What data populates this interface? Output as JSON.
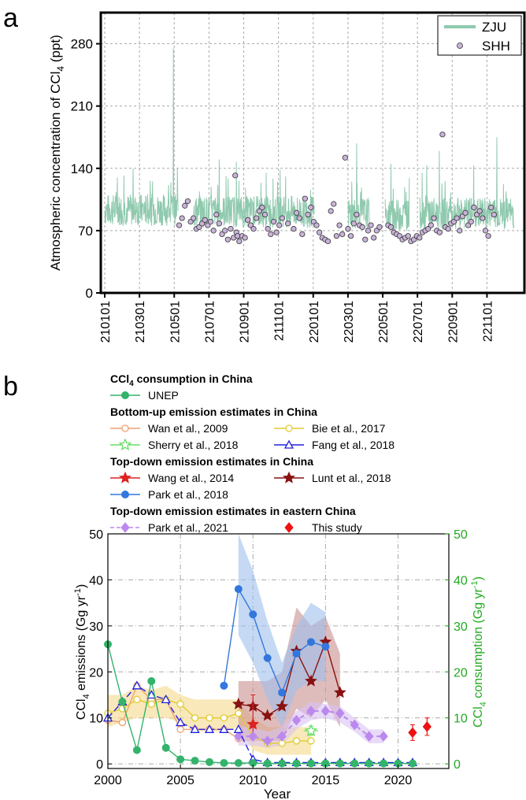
{
  "panel_labels": {
    "a": "a",
    "b": "b"
  },
  "chart_data": [
    {
      "type": "line",
      "panel": "a",
      "ylabel_main": "Atmospheric concentration of CCl",
      "ylabel_sub": "4",
      "ylabel_tail": " (ppt)",
      "xlabel": "",
      "ylim": [
        0,
        315
      ],
      "yticks": [
        0,
        70,
        140,
        210,
        280
      ],
      "xlim": [
        210101,
        221231
      ],
      "xticks": [
        "210101",
        "210301",
        "210501",
        "210701",
        "210901",
        "211101",
        "220101",
        "220301",
        "220501",
        "220701",
        "220901",
        "221101"
      ],
      "grid": true,
      "legend": {
        "position": "top-right",
        "entries": [
          {
            "name": "ZJU",
            "color": "#8fc9ae",
            "kind": "line"
          },
          {
            "name": "SHH",
            "color": "#c9b3d9",
            "kind": "marker"
          }
        ]
      },
      "series": [
        {
          "name": "ZJU",
          "color": "#8fc9ae",
          "segments": [
            {
              "start_day": 0,
              "end_day": 128,
              "base": 88,
              "spike_day": 120,
              "spike": 275
            },
            {
              "start_day": 153,
              "end_day": 366,
              "base": 86,
              "spike_day": 200,
              "spike": 150
            },
            {
              "start_day": 425,
              "end_day": 463,
              "base": 84,
              "spike_day": 440,
              "spike": 168
            },
            {
              "start_day": 490,
              "end_day": 532,
              "base": 82,
              "spike_day": 500,
              "spike": 145
            },
            {
              "start_day": 550,
              "end_day": 715,
              "base": 84,
              "spike_day": 685,
              "spike": 175
            }
          ]
        },
        {
          "name": "SHH",
          "color": "#c9b3d9",
          "x_days": [
            130,
            135,
            140,
            145,
            150,
            155,
            160,
            165,
            170,
            175,
            180,
            185,
            190,
            195,
            200,
            205,
            210,
            215,
            220,
            225,
            228,
            230,
            232,
            235,
            240,
            245,
            250,
            255,
            260,
            265,
            270,
            275,
            280,
            285,
            290,
            295,
            300,
            305,
            310,
            320,
            330,
            335,
            340,
            345,
            350,
            355,
            360,
            365,
            370,
            375,
            380,
            385,
            390,
            395,
            400,
            405,
            410,
            415,
            420,
            425,
            430,
            435,
            440,
            445,
            450,
            455,
            460,
            465,
            470,
            475,
            480,
            495,
            500,
            505,
            510,
            515,
            520,
            525,
            530,
            535,
            540,
            545,
            550,
            555,
            560,
            565,
            570,
            575,
            580,
            585,
            590,
            595,
            600,
            605,
            610,
            615,
            620,
            625,
            630,
            635,
            640,
            645,
            650,
            655,
            660,
            665,
            670,
            675,
            680
          ],
          "y": [
            76,
            84,
            98,
            103,
            80,
            84,
            72,
            74,
            78,
            82,
            76,
            80,
            70,
            88,
            78,
            66,
            70,
            60,
            72,
            62,
            132,
            68,
            64,
            58,
            64,
            62,
            82,
            76,
            72,
            84,
            92,
            96,
            88,
            72,
            66,
            80,
            68,
            76,
            84,
            78,
            72,
            90,
            84,
            66,
            106,
            88,
            96,
            80,
            76,
            68,
            62,
            60,
            58,
            92,
            100,
            64,
            76,
            66,
            152,
            72,
            64,
            78,
            88,
            76,
            74,
            60,
            70,
            76,
            62,
            70,
            74,
            76,
            74,
            68,
            66,
            64,
            60,
            62,
            64,
            58,
            60,
            64,
            62,
            68,
            70,
            72,
            76,
            84,
            70,
            68,
            178,
            74,
            72,
            78,
            80,
            84,
            70,
            86,
            90,
            76,
            80,
            96,
            88,
            92,
            84,
            70,
            64,
            96,
            88
          ]
        }
      ]
    },
    {
      "type": "line",
      "panel": "b",
      "xlabel": "Year",
      "ylabel_left_main": "CCl",
      "ylabel_left_sub": "4",
      "ylabel_left_tail": " emissions (Gg yr",
      "ylabel_left_sup": "-1",
      "ylabel_right_main": "CCl",
      "ylabel_right_sub": "4",
      "ylabel_right_tail": " consumption (Gg yr",
      "ylabel_right_sup": "-1",
      "xlim": [
        2000,
        2023.5
      ],
      "xticks": [
        2000,
        2005,
        2010,
        2015,
        2020
      ],
      "ylim": [
        -1,
        50
      ],
      "yticks": [
        0,
        10,
        20,
        30,
        40,
        50
      ],
      "right_axis_color": "#22aa22",
      "grid": true,
      "legend_groups": [
        {
          "title": "CCl",
          "title_sub": "4",
          "title_tail": " consumption in China",
          "entries": [
            {
              "name": "UNEP",
              "color": "#33b36b",
              "marker": "circle-filled"
            }
          ]
        },
        {
          "title": "Bottom-up emission estimates in China",
          "entries": [
            {
              "name": "Wan et al., 2009",
              "color": "#f0a070",
              "marker": "circle-open"
            },
            {
              "name": "Bie et al., 2017",
              "color": "#e0cc30",
              "marker": "circle-open"
            },
            {
              "name": "Sherry et al., 2018",
              "color": "#66dd66",
              "marker": "star-open"
            },
            {
              "name": "Fang et al., 2018",
              "color": "#2222dd",
              "marker": "triangle-open"
            }
          ]
        },
        {
          "title": "Top-down emission estimates in China",
          "entries": [
            {
              "name": "Wang et al., 2014",
              "color": "#dd2222",
              "marker": "star-filled"
            },
            {
              "name": "Lunt et al., 2018",
              "color": "#881111",
              "marker": "star-filled"
            },
            {
              "name": "Park et al., 2018",
              "color": "#3377dd",
              "marker": "circle-filled"
            }
          ]
        },
        {
          "title": "Top-down emission estimates in eastern China",
          "entries": [
            {
              "name": "Park et al., 2021",
              "color": "#bb88ee",
              "marker": "diamond-filled"
            },
            {
              "name": "This study",
              "color": "#ee1111",
              "marker": "diamond-filled"
            }
          ]
        }
      ],
      "series": [
        {
          "name": "UNEP",
          "color": "#33b36b",
          "marker": "circle-filled",
          "axis": "right",
          "x": [
            2000,
            2001,
            2002,
            2003,
            2004,
            2005,
            2006,
            2007,
            2008,
            2009,
            2010,
            2011,
            2012,
            2013,
            2014,
            2015,
            2016,
            2017,
            2018,
            2019,
            2020,
            2021
          ],
          "y": [
            26,
            13.5,
            3,
            18,
            3.5,
            1,
            0.7,
            0.4,
            0.2,
            0.2,
            0.2,
            0.1,
            0.1,
            0.1,
            0.1,
            0.1,
            0.1,
            0.1,
            0.1,
            0.1,
            0.1,
            0.1
          ]
        },
        {
          "name": "Wan et al., 2009",
          "color": "#f0a070",
          "marker": "circle-open",
          "x": [
            2000,
            2001,
            2002,
            2003,
            2004,
            2005,
            2006,
            2007,
            2008,
            2009
          ],
          "y": [
            9.5,
            9,
            17,
            14,
            14,
            7.5,
            7.5,
            7.5,
            7.5,
            5.5
          ]
        },
        {
          "name": "Bie et al., 2017",
          "color": "#e0cc30",
          "marker": "circle-open",
          "x": [
            2000,
            2001,
            2002,
            2003,
            2004,
            2005,
            2006,
            2007,
            2008,
            2009,
            2010,
            2011,
            2012,
            2013,
            2014
          ],
          "y": [
            11,
            12,
            14,
            13,
            14,
            13,
            10,
            10,
            10,
            11,
            6,
            4.5,
            4.5,
            5,
            5
          ],
          "band_lo": [
            8,
            9,
            10,
            10,
            10,
            9,
            7,
            7,
            7,
            8,
            3,
            2,
            2,
            2,
            2
          ],
          "band_hi": [
            15,
            15,
            17,
            16,
            17,
            15,
            14,
            14,
            14,
            14,
            10,
            8,
            8,
            8,
            8
          ],
          "band_color": "#f5d98a"
        },
        {
          "name": "Sherry et al., 2018",
          "color": "#66dd66",
          "marker": "star-open",
          "x": [
            2014
          ],
          "y": [
            7.2
          ],
          "err": [
            1.0
          ],
          "xerr": [
            0.5
          ]
        },
        {
          "name": "Fang et al., 2018",
          "color": "#2222dd",
          "marker": "triangle-open",
          "x": [
            2000,
            2001,
            2002,
            2003,
            2004,
            2005,
            2006,
            2007,
            2008,
            2009,
            2010,
            2011,
            2012,
            2013,
            2014,
            2015,
            2016,
            2017,
            2018,
            2019,
            2020,
            2021
          ],
          "y": [
            10,
            13.5,
            17,
            15,
            14,
            9,
            7.5,
            7.5,
            7.5,
            7.5,
            1,
            0.3,
            0.3,
            0.3,
            0.3,
            0.3,
            0.3,
            0.3,
            0.3,
            0.3,
            0.3,
            0.3
          ]
        },
        {
          "name": "Wang et al., 2014",
          "color": "#dd2222",
          "marker": "star-filled",
          "x": [
            2010
          ],
          "y": [
            8.6
          ],
          "err_lo": [
            7
          ],
          "err_hi": [
            15
          ]
        },
        {
          "name": "Lunt et al., 2018",
          "color": "#881111",
          "marker": "star-filled",
          "x": [
            2009,
            2010,
            2011,
            2012,
            2013,
            2014,
            2015,
            2016
          ],
          "y": [
            13,
            12.5,
            10.5,
            12.5,
            24.5,
            18,
            26.5,
            15.5
          ],
          "band_lo": [
            5,
            5,
            5,
            5,
            12,
            10,
            14,
            8
          ],
          "band_hi": [
            18,
            18,
            18,
            20,
            34,
            30,
            32,
            24
          ],
          "band_color": "#c9908f"
        },
        {
          "name": "Park et al., 2018",
          "color": "#3377dd",
          "marker": "circle-filled",
          "x": [
            2008,
            2009,
            2010,
            2011,
            2012,
            2013,
            2014,
            2015
          ],
          "y": [
            17,
            38,
            32.5,
            23,
            15.5,
            24,
            26.5,
            25.5
          ],
          "band_lo": [
            null,
            28,
            22,
            14,
            8,
            16,
            18,
            18
          ],
          "band_hi": [
            null,
            50,
            42,
            31,
            22,
            30,
            35,
            33
          ],
          "band_color": "#9ec0ec"
        },
        {
          "name": "Park et al., 2021",
          "color": "#bb88ee",
          "marker": "diamond-filled",
          "x": [
            2009,
            2010,
            2011,
            2012,
            2013,
            2014,
            2015,
            2016,
            2017,
            2018,
            2019
          ],
          "y": [
            6,
            6,
            5,
            6,
            9.5,
            11.5,
            11.5,
            11,
            8.5,
            6,
            6
          ],
          "band_lo": [
            4,
            4,
            3.5,
            4,
            7.5,
            9.5,
            10,
            9,
            7,
            4.5,
            4.5
          ],
          "band_hi": [
            8,
            8,
            7,
            8,
            11.5,
            13.5,
            13,
            12.5,
            10,
            7.5,
            7.5
          ],
          "band_color": "#d8c2f4"
        },
        {
          "name": "This study",
          "color": "#ee1111",
          "marker": "diamond-filled",
          "x": [
            2021,
            2022
          ],
          "y": [
            6.8,
            8.1
          ],
          "err": [
            1.7,
            1.9
          ]
        }
      ]
    }
  ]
}
